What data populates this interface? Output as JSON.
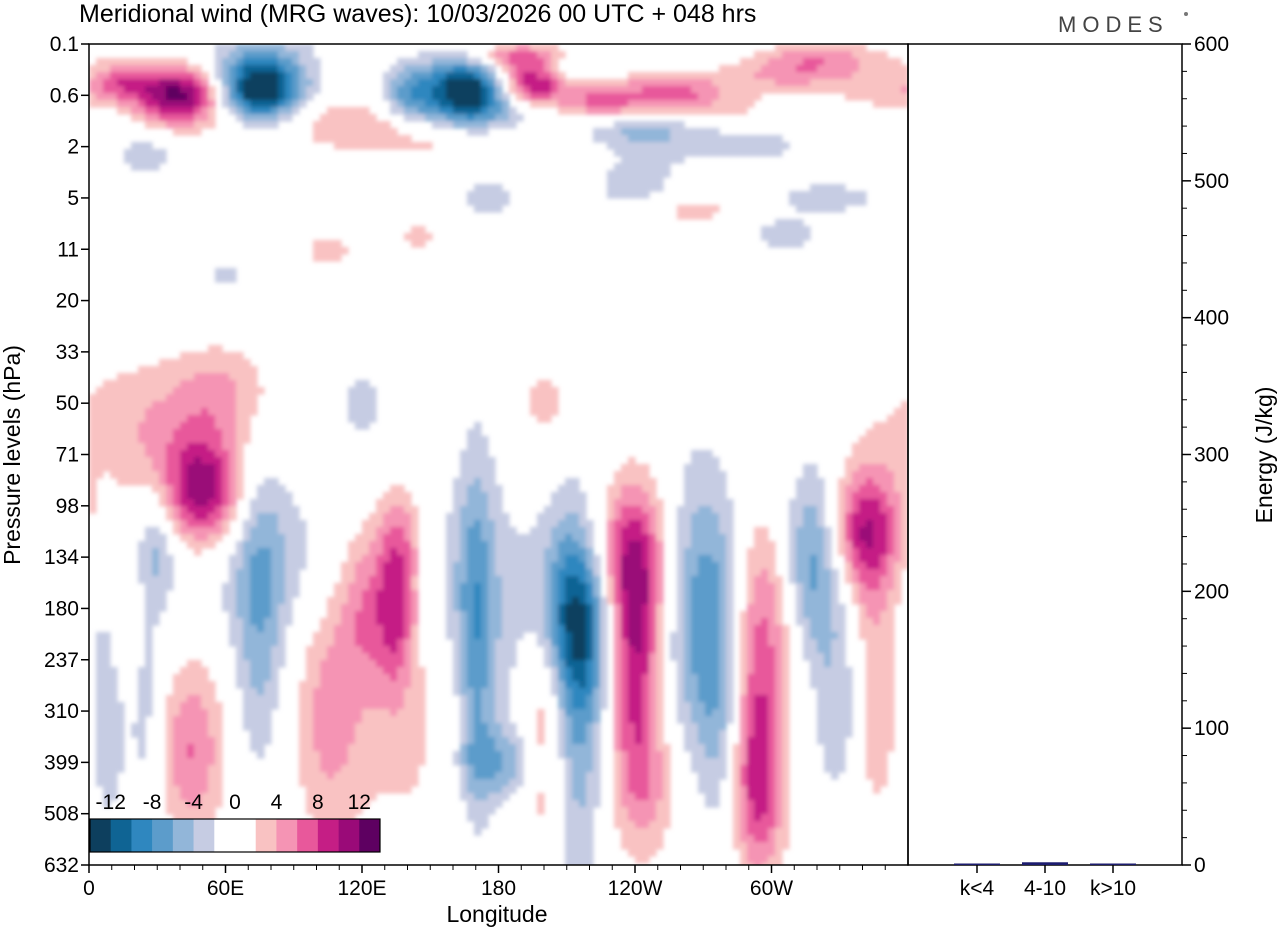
{
  "chart_data": {
    "type": "heatmap",
    "title": "Meridional wind (MRG waves):  10/03/2026  00 UTC  + 048 hrs",
    "brand": "MODES",
    "xlabel": "Longitude",
    "ylabel": "Pressure levels (hPa)",
    "x_ticks": [
      "0",
      "60E",
      "120E",
      "180",
      "120W",
      "60W"
    ],
    "y_ticks": [
      "0.1",
      "0.6",
      "2",
      "5",
      "11",
      "20",
      "33",
      "50",
      "71",
      "98",
      "134",
      "180",
      "237",
      "310",
      "399",
      "508",
      "632"
    ],
    "colorbar": {
      "labels": [
        "-12",
        "-8",
        "-4",
        "0",
        "4",
        "8",
        "12"
      ],
      "levels": [
        -14,
        -12,
        -10,
        -8,
        -6,
        -4,
        -2,
        2,
        4,
        6,
        8,
        10,
        12,
        14
      ],
      "colors": [
        "#0d3f5e",
        "#0f6494",
        "#2f87bf",
        "#5c9ccb",
        "#92b6d9",
        "#c6cce3",
        "#ffffff",
        "#ffffff",
        "#f9c2c2",
        "#f594b4",
        "#e8589b",
        "#c51e85",
        "#9a0a78",
        "#5e0061"
      ]
    },
    "energy_panel": {
      "ylabel": "Energy (J/kg)",
      "ylim": [
        0,
        600
      ],
      "y_ticks": [
        0,
        100,
        200,
        300,
        400,
        500,
        600
      ],
      "categories": [
        "k<4",
        "4-10",
        "k>10"
      ],
      "values": [
        0.5,
        2,
        0.3
      ],
      "bar_color": "#1c1c6e"
    }
  }
}
